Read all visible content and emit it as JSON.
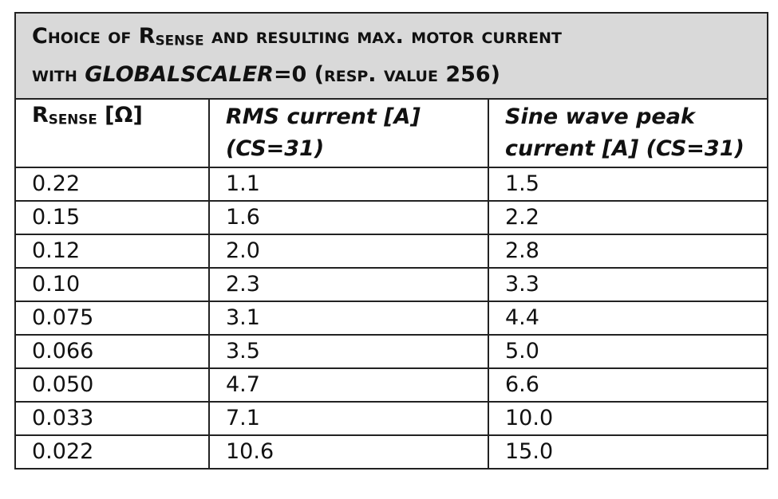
{
  "title": {
    "lines": [
      [
        "Choice of R",
        "sense",
        " and resulting max. motor current"
      ],
      [
        "with ",
        "GLOBALSCALER",
        "=0 (resp. value 256)"
      ]
    ]
  },
  "table": {
    "header": [
      [
        "R",
        "sense",
        " [Ω]"
      ],
      [
        "RMS current [A]",
        "(CS=31)"
      ],
      [
        "Sine wave peak",
        "current [A] (CS=31)"
      ]
    ],
    "rows": [
      [
        "0.22",
        "1.1",
        "1.5"
      ],
      [
        "0.15",
        "1.6",
        "2.2"
      ],
      [
        "0.12",
        "2.0",
        "2.8"
      ],
      [
        "0.10",
        "2.3",
        "3.3"
      ],
      [
        "0.075",
        "3.1",
        "4.4"
      ],
      [
        "0.066",
        "3.5",
        "5.0"
      ],
      [
        "0.050",
        "4.7",
        "6.6"
      ],
      [
        "0.033",
        "7.1",
        "10.0"
      ],
      [
        "0.022",
        "10.6",
        "15.0"
      ]
    ]
  }
}
